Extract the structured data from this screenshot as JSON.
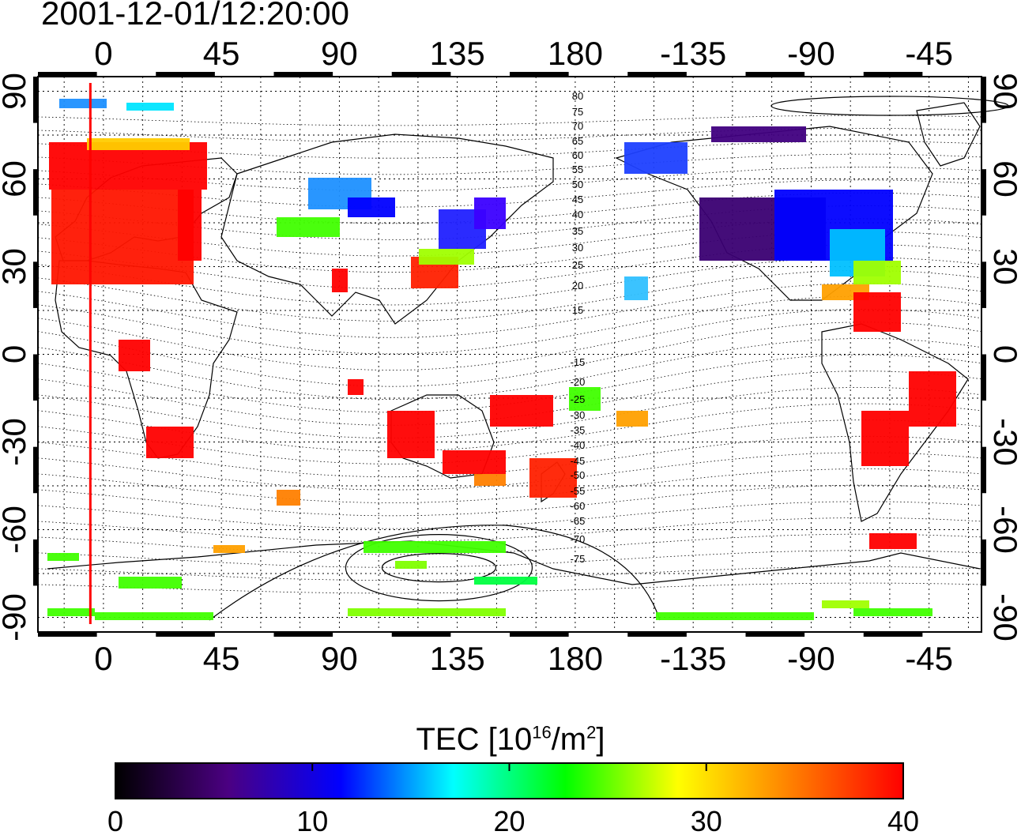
{
  "title": "2001-12-01/12:20:00",
  "top_lon_labels": [
    "0",
    "45",
    "90",
    "135",
    "180",
    "-135",
    "-90",
    "-45"
  ],
  "bottom_lon_labels": [
    "0",
    "45",
    "90",
    "135",
    "180",
    "-135",
    "-90",
    "-45"
  ],
  "left_lat_labels": [
    "90",
    "60",
    "30",
    "0",
    "-30",
    "-60",
    "-90"
  ],
  "right_lat_labels": [
    "90",
    "60",
    "30",
    "0",
    "-30",
    "-60",
    "-90"
  ],
  "contour_labels_north": [
    "80",
    "75",
    "70",
    "65",
    "60",
    "55",
    "50",
    "45",
    "40",
    "35",
    "30",
    "25",
    "20",
    "15"
  ],
  "contour_labels_south": [
    "-15",
    "-20",
    "-25",
    "-30",
    "-35",
    "-40",
    "-45",
    "-50",
    "-55",
    "-60",
    "-65",
    "-70",
    "-75"
  ],
  "colorbar": {
    "title_prefix": "TEC  [10",
    "title_exp": "16",
    "title_mid": "/m",
    "title_exp2": "2",
    "title_suffix": "]",
    "tick_labels": [
      "0",
      "10",
      "20",
      "30",
      "40"
    ],
    "min": 0,
    "max": 40,
    "colors": [
      "#000000",
      "#4b0082",
      "#0000ff",
      "#00ffff",
      "#00ff00",
      "#ffff00",
      "#ff8000",
      "#ff0000"
    ]
  },
  "map": {
    "lon_range": [
      -25,
      335
    ],
    "lat_range": [
      -95,
      95
    ],
    "grid_lon_step": 15,
    "grid_lat_step": 15,
    "marker_line_lon": -5,
    "marker_line_color": "#ff0000"
  }
}
